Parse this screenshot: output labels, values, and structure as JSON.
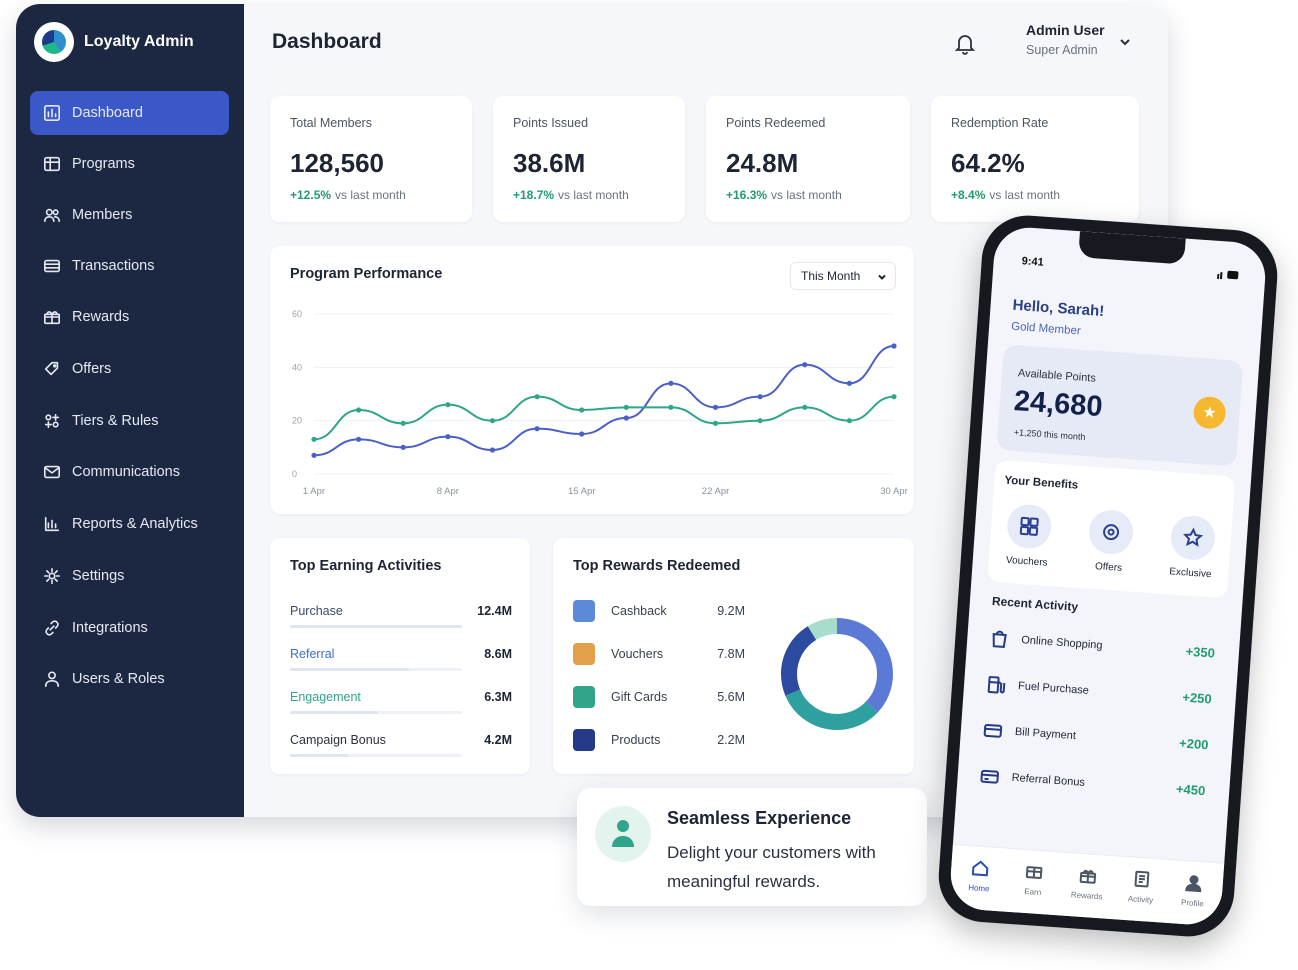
{
  "app": {
    "name": "Loyalty Admin"
  },
  "header": {
    "title": "Dashboard",
    "user_name": "Admin User",
    "user_role": "Super Admin"
  },
  "sidebar": {
    "items": [
      {
        "label": "Dashboard",
        "icon": "dashboard-icon",
        "active": true
      },
      {
        "label": "Programs",
        "icon": "programs-icon"
      },
      {
        "label": "Members",
        "icon": "members-icon"
      },
      {
        "label": "Transactions",
        "icon": "transactions-icon"
      },
      {
        "label": "Rewards",
        "icon": "gift-icon"
      },
      {
        "label": "Offers",
        "icon": "tag-icon"
      },
      {
        "label": "Tiers & Rules",
        "icon": "tiers-icon"
      },
      {
        "label": "Communications",
        "icon": "mail-icon"
      },
      {
        "label": "Reports & Analytics",
        "icon": "chart-icon"
      },
      {
        "label": "Settings",
        "icon": "gear-icon"
      },
      {
        "label": "Integrations",
        "icon": "link-icon"
      },
      {
        "label": "Users & Roles",
        "icon": "user-icon"
      }
    ]
  },
  "stats": [
    {
      "label": "Total Members",
      "value": "128,560",
      "change": "+12.5%",
      "suffix": "vs last month"
    },
    {
      "label": "Points Issued",
      "value": "38.6M",
      "change": "+18.7%",
      "suffix": "vs last month"
    },
    {
      "label": "Points Redeemed",
      "value": "24.8M",
      "change": "+16.3%",
      "suffix": "vs last month"
    },
    {
      "label": "Redemption Rate",
      "value": "64.2%",
      "change": "+8.4%",
      "suffix": "vs last month"
    }
  ],
  "performance": {
    "title": "Program Performance",
    "period": "This Month"
  },
  "chart_data": {
    "type": "line",
    "title": "Program Performance",
    "x": [
      "1 Apr",
      "3 Apr",
      "6 Apr",
      "8 Apr",
      "10 Apr",
      "12 Apr",
      "15 Apr",
      "17 Apr",
      "20 Apr",
      "22 Apr",
      "24 Apr",
      "27 Apr",
      "28 Apr",
      "30 Apr"
    ],
    "xticks": [
      "1 Apr",
      "8 Apr",
      "15 Apr",
      "22 Apr",
      "30 Apr"
    ],
    "yticks": [
      "0",
      "20",
      "40",
      "60"
    ],
    "ylim": [
      0,
      60
    ],
    "grid": true,
    "series": [
      {
        "color": "#4a5fc8",
        "values": [
          7,
          13,
          10,
          14,
          9,
          17,
          15,
          21,
          34,
          25,
          29,
          41,
          34,
          48
        ]
      },
      {
        "color": "#2fa58a",
        "values": [
          13,
          24,
          19,
          26,
          20,
          29,
          24,
          25,
          25,
          19,
          20,
          25,
          20,
          29
        ]
      }
    ]
  },
  "activities": {
    "title": "Top Earning Activities",
    "rows": [
      {
        "label": "Purchase",
        "value": "12.4M",
        "share": 1.0,
        "color": "#3a4a6b"
      },
      {
        "label": "Referral",
        "value": "8.6M",
        "share": 0.69,
        "color": "#3b6fcf"
      },
      {
        "label": "Engagement",
        "value": "6.3M",
        "share": 0.51,
        "color": "#2fa58a"
      },
      {
        "label": "Campaign Bonus",
        "value": "4.2M",
        "share": 0.34,
        "color": "#2b3140"
      }
    ]
  },
  "rewards": {
    "title": "Top Rewards Redeemed",
    "rows": [
      {
        "label": "Cashback",
        "value": "9.2M",
        "color": "#5b8ad8"
      },
      {
        "label": "Vouchers",
        "value": "7.8M",
        "color": "#e3a04a"
      },
      {
        "label": "Gift Cards",
        "value": "5.6M",
        "color": "#2fa58a"
      },
      {
        "label": "Products",
        "value": "2.2M",
        "color": "#243a86"
      }
    ],
    "donut": [
      {
        "value": 9.2,
        "color": "#5b7ad6"
      },
      {
        "value": 7.8,
        "color": "#2fa0a0"
      },
      {
        "value": 5.6,
        "color": "#2b4aa0"
      },
      {
        "value": 2.2,
        "color": "#a8dccd"
      }
    ]
  },
  "toast": {
    "title": "Seamless Experience",
    "text": "Delight your customers with meaningful rewards."
  },
  "phone": {
    "time": "9:41",
    "greeting": "Hello, Sarah!",
    "tier": "Gold Member",
    "points_label": "Available Points",
    "points": "24,680",
    "points_month": "+1,250 this month",
    "benefits_title": "Your Benefits",
    "benefits": [
      "Vouchers",
      "Offers",
      "Exclusive"
    ],
    "recent_title": "Recent Activity",
    "recent": [
      {
        "label": "Online Shopping",
        "value": "+350"
      },
      {
        "label": "Fuel Purchase",
        "value": "+250"
      },
      {
        "label": "Bill Payment",
        "value": "+200"
      },
      {
        "label": "Referral Bonus",
        "value": "+450"
      }
    ],
    "tabs": [
      "Home",
      "Earn",
      "Rewards",
      "Activity",
      "Profile"
    ]
  }
}
